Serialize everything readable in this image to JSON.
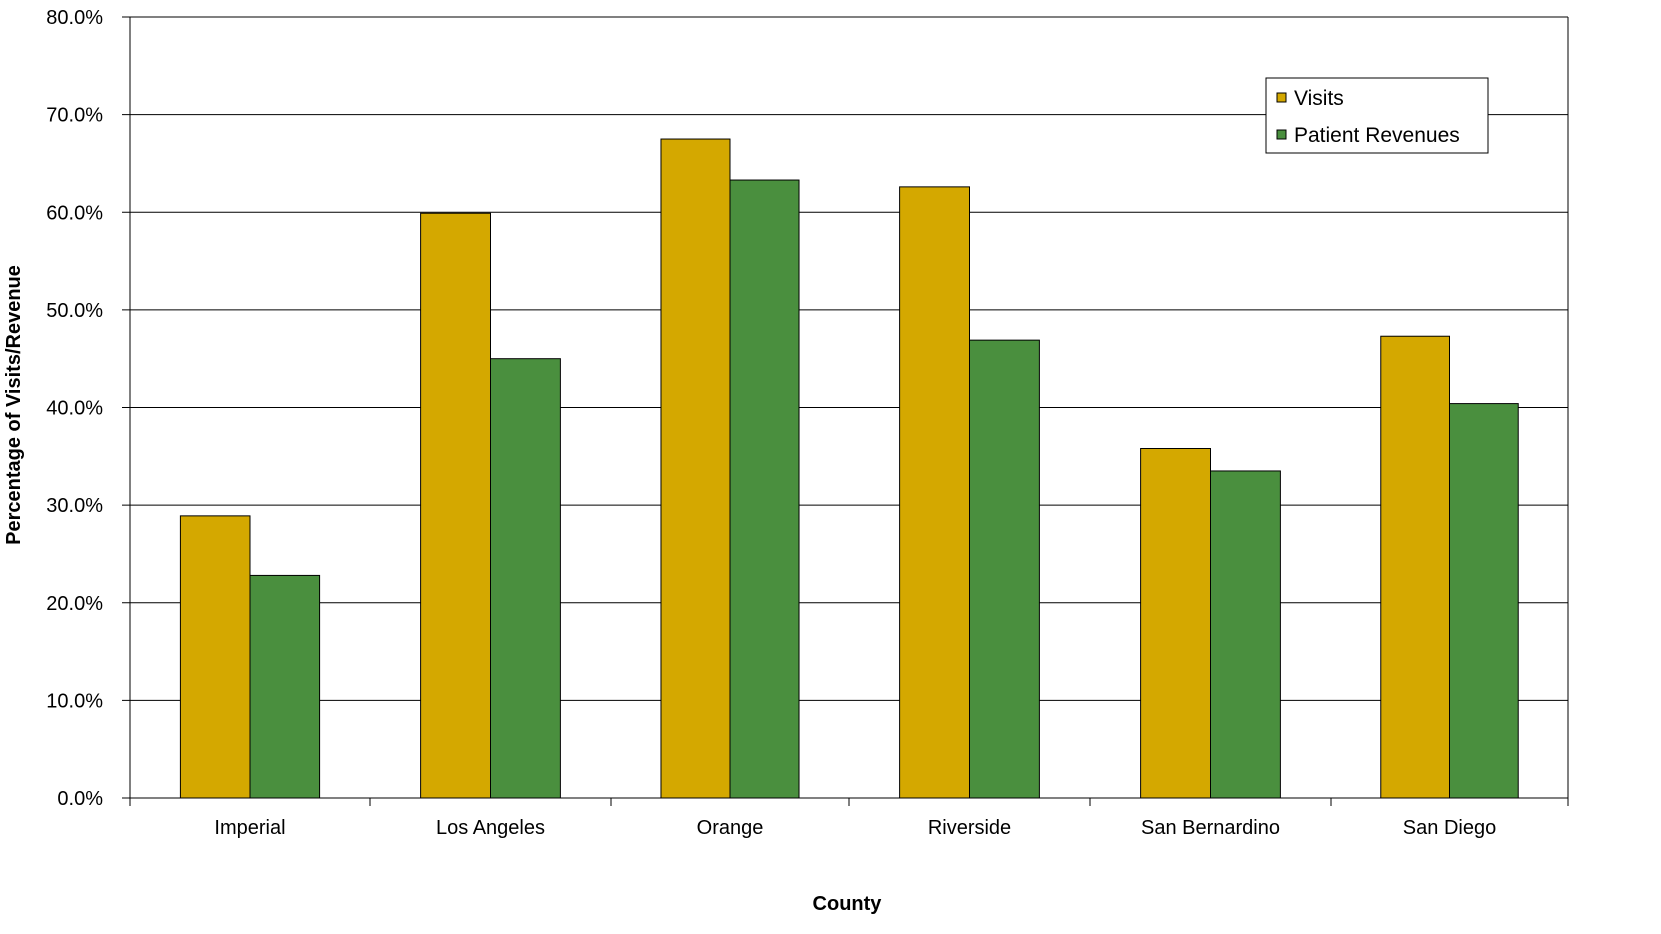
{
  "chart_data": {
    "type": "bar",
    "title": "",
    "xlabel": "County",
    "ylabel": "Percentage of Visits/Revenue",
    "categories": [
      "Imperial",
      "Los Angeles",
      "Orange",
      "Riverside",
      "San Bernardino",
      "San Diego"
    ],
    "series": [
      {
        "name": "Visits",
        "color": "#D4A800",
        "values": [
          28.9,
          59.9,
          67.5,
          62.6,
          35.8,
          47.3
        ]
      },
      {
        "name": "Patient Revenues",
        "color": "#4A8F3E",
        "values": [
          22.8,
          45.0,
          63.3,
          46.9,
          33.5,
          40.4
        ]
      }
    ],
    "ylim": [
      0,
      80
    ],
    "yticks": [
      "0.0%",
      "10.0%",
      "20.0%",
      "30.0%",
      "40.0%",
      "50.0%",
      "60.0%",
      "70.0%",
      "80.0%"
    ],
    "grid": true,
    "legend_position": "top-right"
  }
}
